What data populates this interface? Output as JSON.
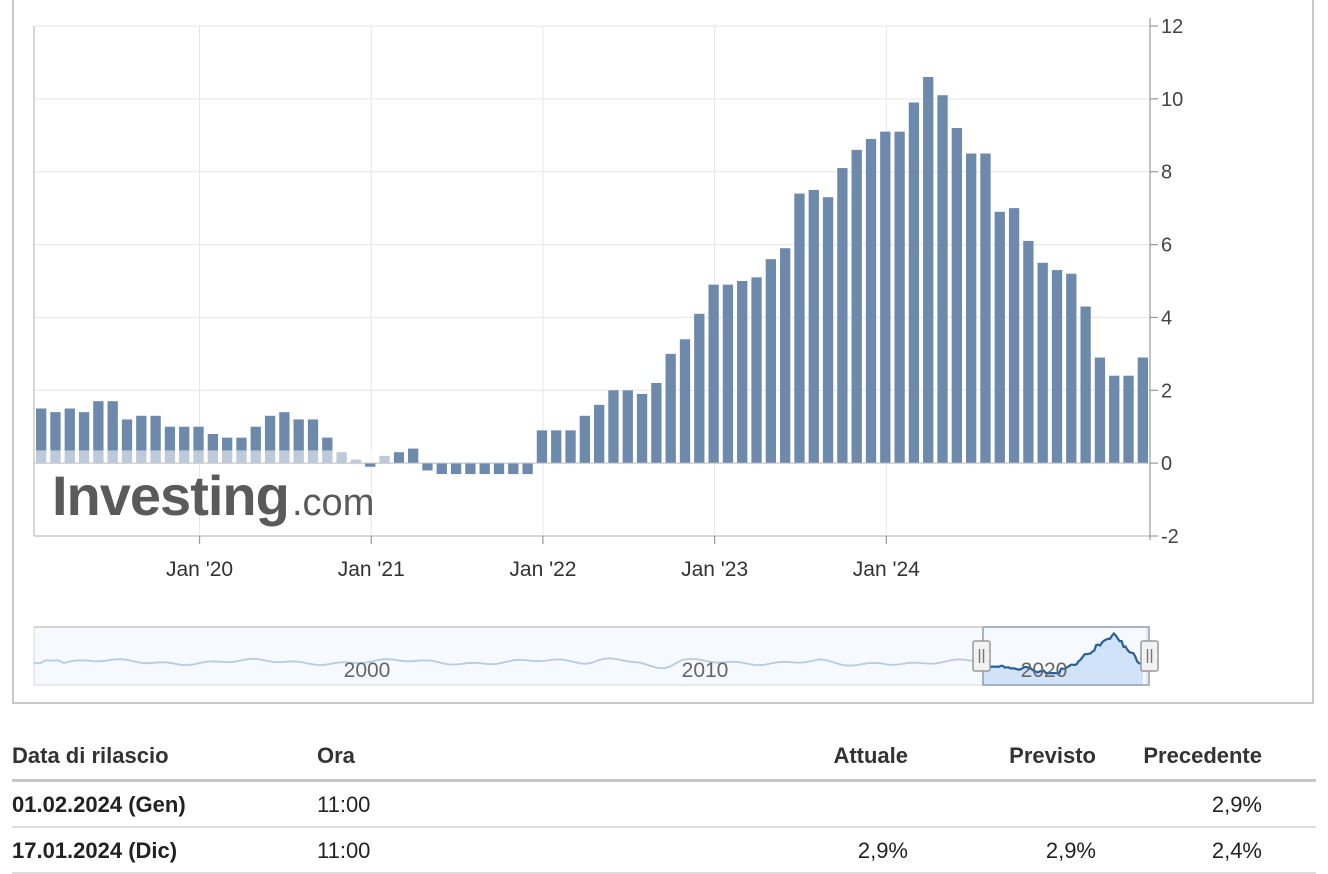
{
  "logo": {
    "main": "Investing",
    "suffix": ".com"
  },
  "navigator": {
    "labels": [
      "2000",
      "2010",
      "2020"
    ]
  },
  "chart_data": {
    "type": "bar",
    "unit": "%",
    "ylim": [
      -2,
      12
    ],
    "yticks": [
      -2,
      0,
      2,
      4,
      6,
      8,
      10,
      12
    ],
    "xticks": [
      "Jan '20",
      "Jan '21",
      "Jan '22",
      "Jan '23",
      "Jan '24"
    ],
    "grid": true,
    "values": [
      1.5,
      1.4,
      1.5,
      1.4,
      1.7,
      1.7,
      1.2,
      1.3,
      1.3,
      1.0,
      1.0,
      1.0,
      0.8,
      0.7,
      0.7,
      1.0,
      1.3,
      1.4,
      1.2,
      1.2,
      0.7,
      0.3,
      0.1,
      -0.1,
      0.2,
      0.3,
      0.4,
      -0.2,
      -0.3,
      -0.3,
      -0.3,
      -0.3,
      -0.3,
      -0.3,
      -0.3,
      0.9,
      0.9,
      0.9,
      1.3,
      1.6,
      2.0,
      2.0,
      1.9,
      2.2,
      3.0,
      3.4,
      4.1,
      4.9,
      4.9,
      5.0,
      5.1,
      5.6,
      5.9,
      7.4,
      7.5,
      7.3,
      8.1,
      8.6,
      8.9,
      9.1,
      9.1,
      9.9,
      10.6,
      10.1,
      9.2,
      8.5,
      8.5,
      6.9,
      7.0,
      6.1,
      5.5,
      5.3,
      5.2,
      4.3,
      2.9,
      2.4,
      2.4,
      2.9
    ]
  },
  "table": {
    "headers": {
      "date": "Data di rilascio",
      "time": "Ora",
      "actual": "Attuale",
      "forecast": "Previsto",
      "previous": "Precedente"
    },
    "rows": [
      {
        "date": "01.02.2024 (Gen)",
        "time": "11:00",
        "actual": "",
        "forecast": "",
        "previous": "2,9%"
      },
      {
        "date": "17.01.2024 (Dic)",
        "time": "11:00",
        "actual": "2,9%",
        "forecast": "2,9%",
        "previous": "2,4%"
      }
    ]
  }
}
